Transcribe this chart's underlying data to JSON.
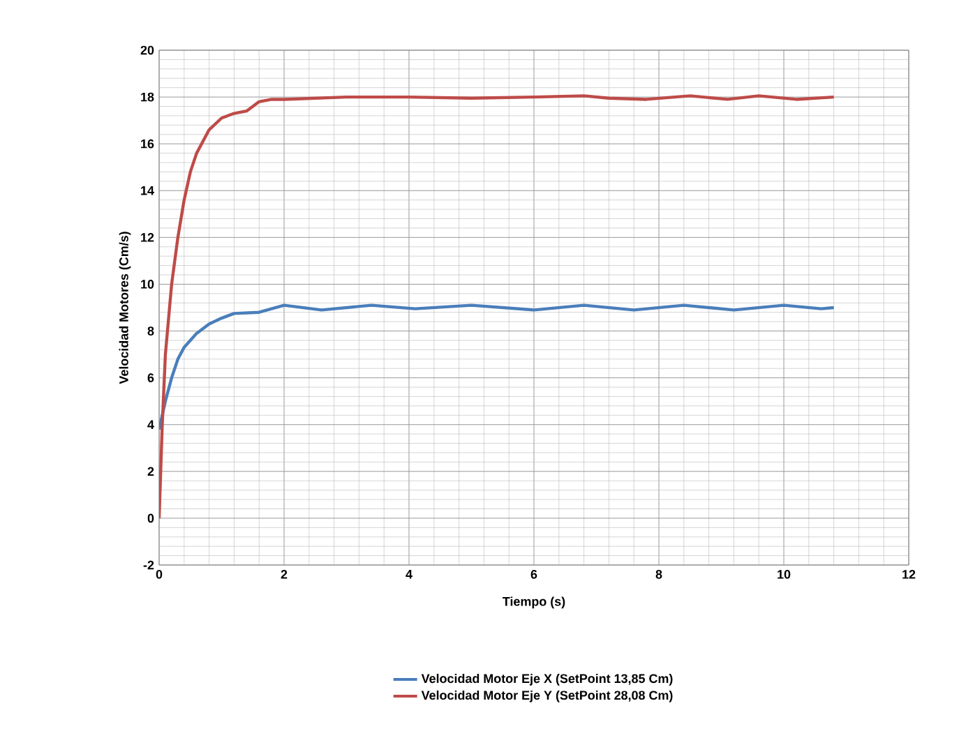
{
  "chart_data": {
    "type": "line",
    "xlabel": "Tiempo (s)",
    "ylabel": "Velocidad Motores (Cm/s)",
    "xlim": [
      0,
      12
    ],
    "xticks": [
      0,
      2,
      4,
      6,
      8,
      10,
      12
    ],
    "ylim": [
      -2,
      20
    ],
    "yticks": [
      -2,
      0,
      2,
      4,
      6,
      8,
      10,
      12,
      14,
      16,
      18,
      20
    ],
    "grid": true,
    "legend": "bottom",
    "marker": "none",
    "line_style": "solid",
    "series": [
      {
        "name": "Velocidad Motor Eje X (SetPoint 13,85 Cm)",
        "color": "#4a7ebb",
        "x": [
          0,
          0.1,
          0.2,
          0.3,
          0.4,
          0.6,
          0.8,
          1.0,
          1.2,
          1.6,
          2,
          2.6,
          3.4,
          4.1,
          5,
          6,
          6.8,
          7.6,
          8.4,
          9.2,
          10,
          10.6,
          10.8
        ],
        "values": [
          3.8,
          5,
          6,
          6.8,
          7.3,
          7.9,
          8.3,
          8.55,
          8.75,
          8.8,
          9.1,
          8.9,
          9.1,
          8.95,
          9.1,
          8.9,
          9.1,
          8.9,
          9.1,
          8.9,
          9.1,
          8.95,
          9.0
        ]
      },
      {
        "name": "Velocidad Motor Eje Y (SetPoint 28,08 Cm)",
        "color": "#be4b48",
        "x": [
          0,
          0.05,
          0.1,
          0.2,
          0.3,
          0.4,
          0.5,
          0.6,
          0.8,
          1.0,
          1.2,
          1.4,
          1.6,
          1.8,
          2,
          3,
          4,
          5,
          6,
          6.8,
          7.2,
          7.8,
          8.5,
          9.1,
          9.6,
          10.2,
          10.8
        ],
        "values": [
          0,
          4,
          7,
          10,
          12,
          13.6,
          14.8,
          15.6,
          16.6,
          17.1,
          17.3,
          17.4,
          17.8,
          17.9,
          17.9,
          18.0,
          18.0,
          17.95,
          18.0,
          18.05,
          17.95,
          17.9,
          18.05,
          17.9,
          18.05,
          17.9,
          18.0
        ]
      }
    ]
  }
}
